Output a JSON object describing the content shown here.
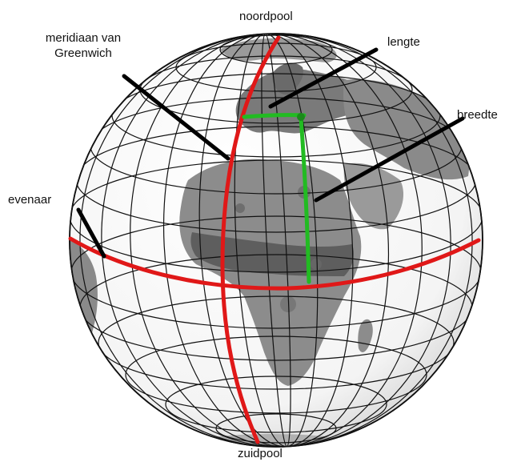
{
  "labels": {
    "north_pole": "noordpool",
    "meridian_line1": "meridiaan van",
    "meridian_line2": "Greenwich",
    "longitude": "lengte",
    "latitude": "breedte",
    "equator": "evenaar",
    "south_pole": "zuidpool"
  },
  "colors": {
    "background": "#ffffff",
    "globe_ocean": "#ffffff",
    "land": "#8c8c8c",
    "land_dark": "#5e5e5e",
    "grid": "#111111",
    "meridian_equator": "#e01818",
    "lat_lon_marker": "#22bb22",
    "pointer": "#000000"
  },
  "icons": {
    "globe": "globe-icon"
  }
}
